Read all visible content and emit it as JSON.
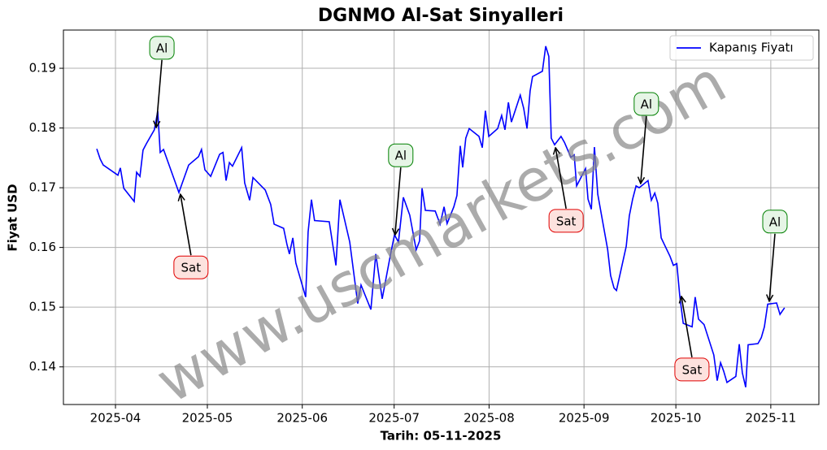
{
  "chart_data": {
    "type": "line",
    "title": "DGNMO Al-Sat Sinyalleri",
    "x_label": "Tarih: 05-11-2025",
    "y_label": "Fiyat USD",
    "watermark": "www.uscmarkets.com",
    "xlim": [
      -17.0,
      229.7
    ],
    "ylim": [
      0.1337,
      0.1964
    ],
    "xticks": [
      {
        "value": 0,
        "label": "2025-04"
      },
      {
        "value": 30,
        "label": "2025-05"
      },
      {
        "value": 61,
        "label": "2025-06"
      },
      {
        "value": 91,
        "label": "2025-07"
      },
      {
        "value": 122,
        "label": "2025-08"
      },
      {
        "value": 153,
        "label": "2025-09"
      },
      {
        "value": 183,
        "label": "2025-10"
      },
      {
        "value": 214,
        "label": "2025-11"
      }
    ],
    "yticks": [
      0.14,
      0.15,
      0.16,
      0.17,
      0.18,
      0.19
    ],
    "grid": true,
    "legend": "upper right",
    "x": [
      -6.1,
      -5.0,
      -4.0,
      0.8,
      1.6,
      2.7,
      6.1,
      6.9,
      8.0,
      9.0,
      10.1,
      12.7,
      13.8,
      14.6,
      15.7,
      20.7,
      23.9,
      27.1,
      28.1,
      29.2,
      31.1,
      34.0,
      35.1,
      36.1,
      37.2,
      38.2,
      41.2,
      42.2,
      43.8,
      44.9,
      48.9,
      50.7,
      51.8,
      54.9,
      56.0,
      56.8,
      57.9,
      58.9,
      62.1,
      62.9,
      64.0,
      65.0,
      69.8,
      72.0,
      73.3,
      76.5,
      79.1,
      80.2,
      83.4,
      85.0,
      87.1,
      89.8,
      91.1,
      92.4,
      94.0,
      96.1,
      98.2,
      99.3,
      100.1,
      101.2,
      104.4,
      106.0,
      107.3,
      108.3,
      110.5,
      111.5,
      112.6,
      113.4,
      114.4,
      115.5,
      118.7,
      119.8,
      120.8,
      121.9,
      124.8,
      126.1,
      127.2,
      128.3,
      129.3,
      132.2,
      133.3,
      134.4,
      135.4,
      136.2,
      139.4,
      140.5,
      141.5,
      142.3,
      143.4,
      145.5,
      146.6,
      148.7,
      149.8,
      150.6,
      153.5,
      154.3,
      155.4,
      156.4,
      157.5,
      160.7,
      161.7,
      162.8,
      163.6,
      166.8,
      167.8,
      168.9,
      170.0,
      171.0,
      173.9,
      175.0,
      176.1,
      177.1,
      178.2,
      181.1,
      182.2,
      183.3,
      184.3,
      185.4,
      188.3,
      189.3,
      190.4,
      192.2,
      195.4,
      196.5,
      197.6,
      198.6,
      199.7,
      202.6,
      203.7,
      204.7,
      205.8,
      206.6,
      209.8,
      210.9,
      211.9,
      213.0,
      215.9,
      217.0,
      218.5
    ],
    "series": [
      {
        "name": "Kapanış Fiyatı",
        "color": "#0000ff",
        "values": [
          0.1765,
          0.1748,
          0.1738,
          0.1721,
          0.1733,
          0.1699,
          0.1677,
          0.1726,
          0.1719,
          0.1763,
          0.1774,
          0.1797,
          0.1828,
          0.1759,
          0.1764,
          0.1692,
          0.1738,
          0.1752,
          0.1764,
          0.173,
          0.1719,
          0.1756,
          0.1759,
          0.1712,
          0.1742,
          0.1736,
          0.1767,
          0.1708,
          0.1679,
          0.1717,
          0.1696,
          0.1672,
          0.1639,
          0.1632,
          0.1605,
          0.1589,
          0.1616,
          0.1574,
          0.1517,
          0.1626,
          0.168,
          0.1645,
          0.1643,
          0.157,
          0.168,
          0.1609,
          0.1506,
          0.1537,
          0.1496,
          0.1589,
          0.1514,
          0.1588,
          0.1621,
          0.1609,
          0.1684,
          0.1654,
          0.1596,
          0.1611,
          0.1699,
          0.1662,
          0.1661,
          0.1639,
          0.1668,
          0.164,
          0.1668,
          0.1687,
          0.177,
          0.1734,
          0.1783,
          0.1799,
          0.1786,
          0.1767,
          0.1829,
          0.1786,
          0.1799,
          0.1821,
          0.1797,
          0.1843,
          0.181,
          0.1855,
          0.1833,
          0.1799,
          0.1862,
          0.1886,
          0.1895,
          0.1937,
          0.192,
          0.1783,
          0.1772,
          0.1786,
          0.1776,
          0.1751,
          0.1755,
          0.1703,
          0.1732,
          0.1681,
          0.1664,
          0.1768,
          0.1689,
          0.1597,
          0.1553,
          0.1532,
          0.1528,
          0.1602,
          0.1653,
          0.1681,
          0.1703,
          0.17,
          0.1712,
          0.1679,
          0.1691,
          0.1674,
          0.1616,
          0.1585,
          0.157,
          0.1573,
          0.1518,
          0.1473,
          0.1467,
          0.1517,
          0.148,
          0.1471,
          0.142,
          0.1377,
          0.1407,
          0.1393,
          0.1374,
          0.1384,
          0.1438,
          0.139,
          0.1366,
          0.1437,
          0.1439,
          0.1449,
          0.1467,
          0.1505,
          0.1507,
          0.1488,
          0.1499
        ]
      }
    ],
    "annotations": [
      {
        "text": "Al",
        "x": 13.3,
        "y": 0.1801,
        "color": "#008000",
        "fill": "#e6f5e6"
      },
      {
        "text": "Sat",
        "x": 21.2,
        "y": 0.1689,
        "color": "#e00000",
        "fill": "#fde2de"
      },
      {
        "text": "Al",
        "x": 91.3,
        "y": 0.1621,
        "color": "#008000",
        "fill": "#e6f5e6"
      },
      {
        "text": "Sat",
        "x": 143.7,
        "y": 0.1767,
        "color": "#e00000",
        "fill": "#fde2de"
      },
      {
        "text": "Al",
        "x": 171.5,
        "y": 0.1707,
        "color": "#008000",
        "fill": "#e6f5e6"
      },
      {
        "text": "Sat",
        "x": 184.8,
        "y": 0.1518,
        "color": "#e00000",
        "fill": "#fde2de"
      },
      {
        "text": "Al",
        "x": 213.5,
        "y": 0.151,
        "color": "#008000",
        "fill": "#e6f5e6"
      }
    ]
  }
}
